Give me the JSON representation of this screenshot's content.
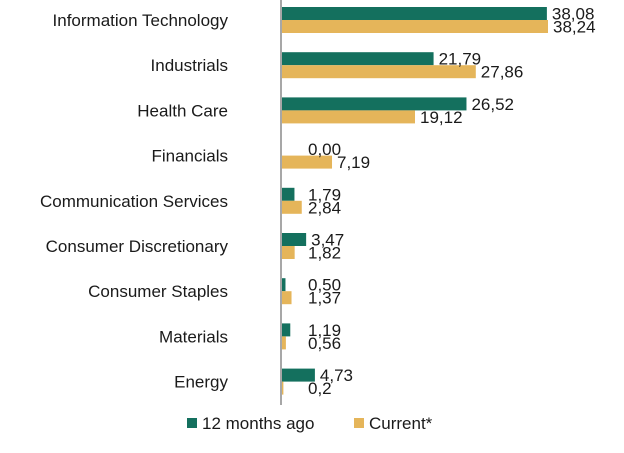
{
  "chart_data": {
    "type": "bar",
    "orientation": "horizontal",
    "categories": [
      "Information Technology",
      "Industrials",
      "Health Care",
      "Financials",
      "Communication Services",
      "Consumer Discretionary",
      "Consumer Staples",
      "Materials",
      "Energy"
    ],
    "series": [
      {
        "name": "12 months ago",
        "color": "#14705e",
        "values": [
          38.08,
          21.79,
          26.52,
          0.0,
          1.79,
          3.47,
          0.5,
          1.19,
          4.73
        ],
        "labels": [
          "38,08",
          "21,79",
          "26,52",
          "0,00",
          "1,79",
          "3,47",
          "0,50",
          "1,19",
          "4,73"
        ]
      },
      {
        "name": "Current*",
        "color": "#e5b55a",
        "values": [
          38.24,
          27.86,
          19.12,
          7.19,
          2.84,
          1.82,
          1.37,
          0.56,
          0.2
        ],
        "labels": [
          "38,24",
          "27,86",
          "19,12",
          "7,19",
          "2,84",
          "1,82",
          "1,37",
          "0,56",
          "0,2"
        ]
      }
    ],
    "legend": {
      "position": "bottom"
    },
    "grid": false,
    "xlim": [
      0,
      38.24
    ]
  }
}
